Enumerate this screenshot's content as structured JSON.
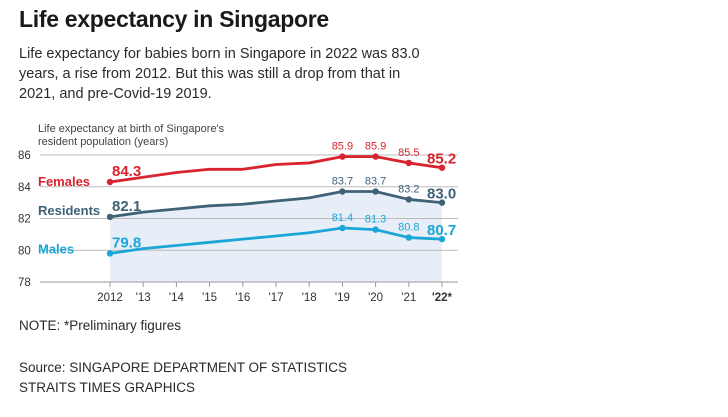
{
  "header": {
    "title": "Life expectancy in Singapore",
    "subtitle": "Life expectancy for babies born in Singapore in 2022 was 83.0 years, a rise from 2012. But this was still a drop from that in 2021, and pre-Covid-19 2019."
  },
  "footer": {
    "note": "NOTE: *Preliminary figures",
    "source_line1": "Source: SINGAPORE DEPARTMENT OF STATISTICS",
    "source_line2": "STRAITS TIMES GRAPHICS"
  },
  "chart_data": {
    "type": "line",
    "title": "",
    "ylabel_line1": "Life expectancy at birth of Singapore's",
    "ylabel_line2": "resident population (years)",
    "ylim": [
      78,
      86
    ],
    "yticks": [
      78,
      80,
      82,
      84,
      86
    ],
    "x": [
      2012,
      2013,
      2014,
      2015,
      2016,
      2017,
      2018,
      2019,
      2020,
      2021,
      2022
    ],
    "x_tick_labels": [
      "2012",
      "'13",
      "'14",
      "'15",
      "'16",
      "'17",
      "'18",
      "'19",
      "'20",
      "'21",
      "'22*"
    ],
    "grid": true,
    "series": [
      {
        "name": "Females",
        "color": "#d9232e",
        "values": [
          84.3,
          84.6,
          84.9,
          85.1,
          85.1,
          85.4,
          85.5,
          85.9,
          85.9,
          85.5,
          85.2
        ],
        "labels": [
          {
            "index": 0,
            "text": "84.3",
            "big": true
          },
          {
            "index": 7,
            "text": "85.9",
            "big": false
          },
          {
            "index": 8,
            "text": "85.9",
            "big": false
          },
          {
            "index": 9,
            "text": "85.5",
            "big": false
          },
          {
            "index": 10,
            "text": "85.2",
            "big": true
          }
        ]
      },
      {
        "name": "Residents",
        "color": "#3f6277",
        "values": [
          82.1,
          82.4,
          82.6,
          82.8,
          82.9,
          83.1,
          83.3,
          83.7,
          83.7,
          83.2,
          83.0
        ],
        "labels": [
          {
            "index": 0,
            "text": "82.1",
            "big": true
          },
          {
            "index": 7,
            "text": "83.7",
            "big": false
          },
          {
            "index": 8,
            "text": "83.7",
            "big": false
          },
          {
            "index": 9,
            "text": "83.2",
            "big": false
          },
          {
            "index": 10,
            "text": "83.0",
            "big": true
          }
        ]
      },
      {
        "name": "Males",
        "color": "#1aa6d6",
        "values": [
          79.8,
          80.1,
          80.3,
          80.5,
          80.7,
          80.9,
          81.1,
          81.4,
          81.3,
          80.8,
          80.7
        ],
        "labels": [
          {
            "index": 0,
            "text": "79.8",
            "big": true
          },
          {
            "index": 7,
            "text": "81.4",
            "big": false
          },
          {
            "index": 8,
            "text": "81.3",
            "big": false
          },
          {
            "index": 9,
            "text": "80.8",
            "big": false
          },
          {
            "index": 10,
            "text": "80.7",
            "big": true
          }
        ]
      }
    ]
  }
}
